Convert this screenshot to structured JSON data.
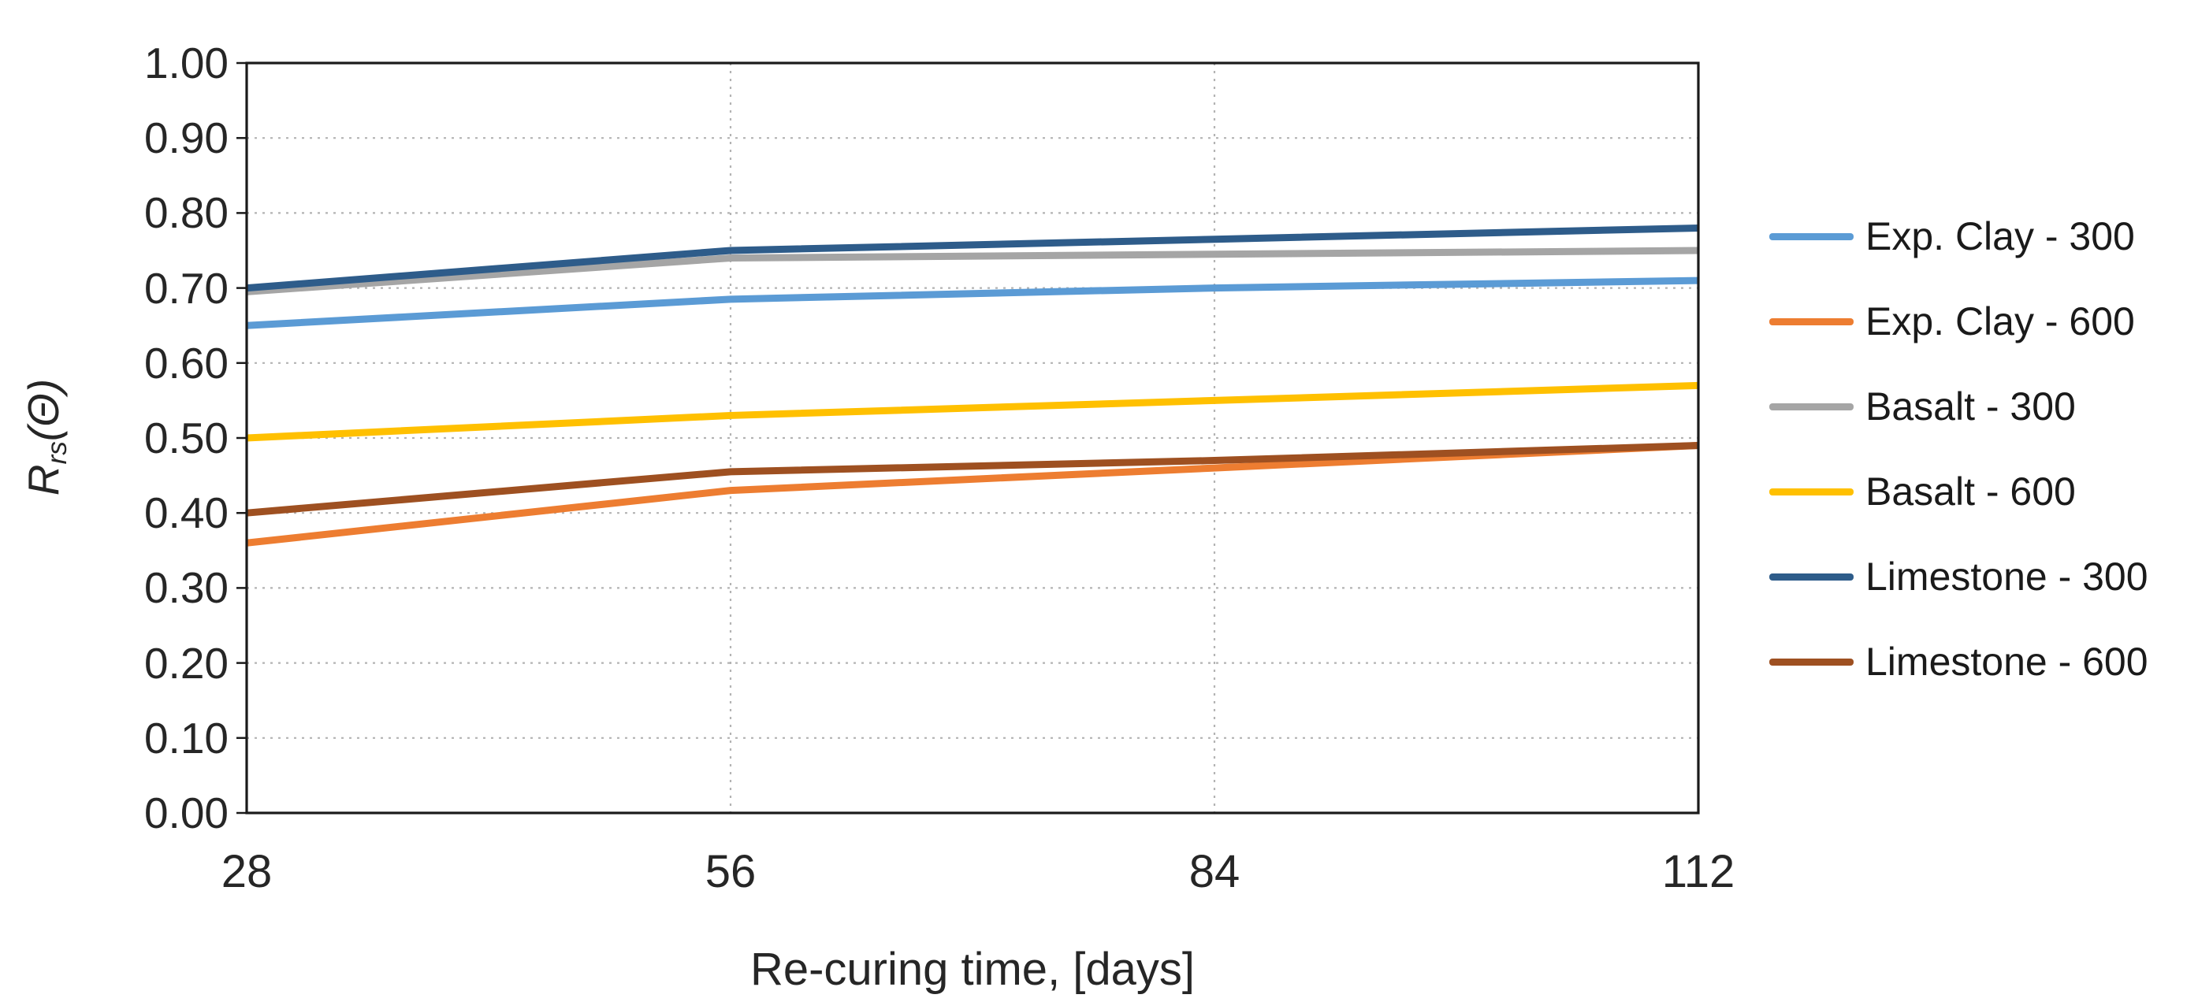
{
  "figure": {
    "background": "#ffffff",
    "plot_border_color": "#1a1a1a",
    "grid_color": "#b3b3b3",
    "tick_text_color": "#262626"
  },
  "chart_data": {
    "type": "line",
    "title": "",
    "x": [
      28,
      56,
      84,
      112
    ],
    "x_tick_labels": [
      "28",
      "56",
      "84",
      "112"
    ],
    "y_tick_labels": [
      "0.00",
      "0.10",
      "0.20",
      "0.30",
      "0.40",
      "0.50",
      "0.60",
      "0.70",
      "0.80",
      "0.90",
      "1.00"
    ],
    "ylim": [
      0.0,
      1.0
    ],
    "ytick_step": 0.1,
    "xlabel": "Re-curing time, [days]",
    "ylabel": "Rrs(Θ)",
    "ylabel_parts": {
      "base": "R",
      "sub": "rs",
      "suffix": "(Θ)"
    },
    "grid": "dotted horizontal at every 0.10; dotted vertical at 56 and 84",
    "legend_position": "right",
    "series": [
      {
        "name": "Exp. Clay - 300",
        "color": "#5B9BD5",
        "values": [
          0.65,
          0.685,
          0.7,
          0.71
        ]
      },
      {
        "name": "Exp. Clay - 600",
        "color": "#ED7D31",
        "values": [
          0.36,
          0.43,
          0.46,
          0.49
        ]
      },
      {
        "name": "Basalt - 300",
        "color": "#A5A5A5",
        "values": [
          0.695,
          0.74,
          0.745,
          0.75
        ]
      },
      {
        "name": "Basalt - 600",
        "color": "#FFC000",
        "values": [
          0.5,
          0.53,
          0.55,
          0.57
        ]
      },
      {
        "name": "Limestone - 300",
        "color": "#2E5C8A",
        "values": [
          0.7,
          0.75,
          0.765,
          0.78
        ]
      },
      {
        "name": "Limestone - 600",
        "color": "#9E5021",
        "values": [
          0.4,
          0.455,
          0.47,
          0.49
        ]
      }
    ]
  }
}
